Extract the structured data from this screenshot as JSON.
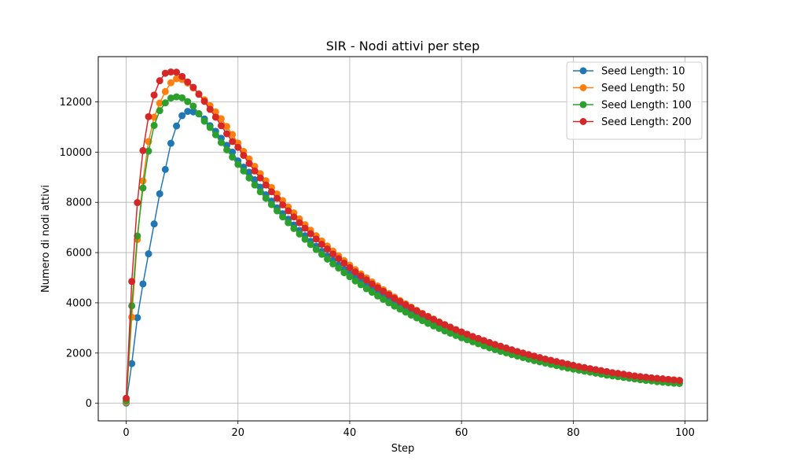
{
  "chart_data": {
    "type": "line",
    "title": "SIR - Nodi attivi per step",
    "xlabel": "Step",
    "ylabel": "Numero di nodi attivi",
    "xlim": [
      -5,
      104
    ],
    "ylim": [
      -700,
      13800
    ],
    "xticks": [
      0,
      20,
      40,
      60,
      80,
      100
    ],
    "yticks": [
      0,
      2000,
      4000,
      6000,
      8000,
      10000,
      12000
    ],
    "grid": true,
    "legend_position": "top-right",
    "x": [
      0,
      1,
      2,
      3,
      4,
      5,
      6,
      7,
      8,
      9,
      10,
      11,
      12,
      13,
      14,
      15,
      16,
      17,
      18,
      19,
      20,
      21,
      22,
      23,
      24,
      25,
      26,
      27,
      28,
      29,
      30,
      31,
      32,
      33,
      34,
      35,
      36,
      37,
      38,
      39,
      40,
      41,
      42,
      43,
      44,
      45,
      46,
      47,
      48,
      49,
      50,
      51,
      52,
      53,
      54,
      55,
      56,
      57,
      58,
      59,
      60,
      61,
      62,
      63,
      64,
      65,
      66,
      67,
      68,
      69,
      70,
      71,
      72,
      73,
      74,
      75,
      76,
      77,
      78,
      79,
      80,
      81,
      82,
      83,
      84,
      85,
      86,
      87,
      88,
      89,
      90,
      91,
      92,
      93,
      94,
      95,
      96,
      97,
      98,
      99
    ],
    "series": [
      {
        "name": "Seed Length: 10",
        "color": "#1f77b4",
        "values": [
          10,
          1580,
          3410,
          4750,
          5950,
          7140,
          8340,
          9310,
          10350,
          11040,
          11450,
          11620,
          11600,
          11520,
          11320,
          11050,
          10830,
          10550,
          10270,
          10000,
          9650,
          9400,
          9200,
          8900,
          8600,
          8300,
          8050,
          7780,
          7550,
          7330,
          7100,
          6880,
          6670,
          6450,
          6250,
          6050,
          5860,
          5690,
          5510,
          5340,
          5170,
          5010,
          4850,
          4700,
          4560,
          4410,
          4270,
          4140,
          4010,
          3880,
          3760,
          3640,
          3530,
          3420,
          3310,
          3210,
          3110,
          3010,
          2920,
          2830,
          2740,
          2660,
          2570,
          2490,
          2420,
          2340,
          2270,
          2200,
          2130,
          2070,
          2000,
          1940,
          1880,
          1820,
          1770,
          1710,
          1660,
          1610,
          1560,
          1510,
          1470,
          1420,
          1380,
          1340,
          1300,
          1260,
          1220,
          1180,
          1150,
          1110,
          1080,
          1050,
          1020,
          990,
          960,
          930,
          900,
          880,
          850,
          830
        ]
      },
      {
        "name": "Seed Length: 50",
        "color": "#ff7f0e",
        "values": [
          50,
          3430,
          6520,
          8850,
          10420,
          11390,
          11950,
          12410,
          12760,
          12920,
          12890,
          12750,
          12550,
          12320,
          12080,
          11850,
          11600,
          11330,
          11020,
          10700,
          10360,
          10030,
          9730,
          9430,
          9140,
          8860,
          8590,
          8330,
          8070,
          7820,
          7580,
          7340,
          7110,
          6890,
          6670,
          6460,
          6260,
          6060,
          5870,
          5680,
          5500,
          5320,
          5150,
          4990,
          4830,
          4670,
          4520,
          4370,
          4230,
          4090,
          3960,
          3830,
          3700,
          3580,
          3460,
          3350,
          3240,
          3130,
          3030,
          2930,
          2840,
          2740,
          2650,
          2570,
          2480,
          2400,
          2320,
          2250,
          2170,
          2100,
          2030,
          1970,
          1910,
          1840,
          1790,
          1730,
          1670,
          1620,
          1570,
          1520,
          1470,
          1420,
          1380,
          1340,
          1300,
          1260,
          1220,
          1190,
          1150,
          1120,
          1100,
          1070,
          1050,
          1030,
          1010,
          990,
          970,
          950,
          930,
          910
        ]
      },
      {
        "name": "Seed Length: 100",
        "color": "#2ca02c",
        "values": [
          100,
          3880,
          6660,
          8570,
          10040,
          11060,
          11650,
          11960,
          12150,
          12200,
          12160,
          12010,
          11830,
          11530,
          11230,
          10980,
          10690,
          10380,
          10090,
          9800,
          9510,
          9250,
          8970,
          8690,
          8420,
          8160,
          7910,
          7660,
          7420,
          7190,
          6960,
          6740,
          6530,
          6320,
          6120,
          5930,
          5740,
          5550,
          5380,
          5200,
          5040,
          4870,
          4720,
          4560,
          4420,
          4270,
          4140,
          4000,
          3870,
          3750,
          3630,
          3510,
          3400,
          3290,
          3180,
          3080,
          2980,
          2880,
          2790,
          2700,
          2610,
          2530,
          2450,
          2370,
          2290,
          2210,
          2140,
          2070,
          2010,
          1940,
          1880,
          1820,
          1760,
          1700,
          1650,
          1600,
          1550,
          1500,
          1450,
          1400,
          1360,
          1320,
          1280,
          1240,
          1200,
          1160,
          1120,
          1090,
          1060,
          1030,
          1000,
          970,
          940,
          910,
          890,
          860,
          840,
          820,
          800,
          790
        ]
      },
      {
        "name": "Seed Length: 200",
        "color": "#d62728",
        "values": [
          200,
          4850,
          7990,
          10060,
          11410,
          12270,
          12840,
          13140,
          13190,
          13180,
          13010,
          12790,
          12580,
          12300,
          12020,
          11700,
          11390,
          11050,
          10730,
          10420,
          10190,
          9870,
          9550,
          9250,
          8970,
          8690,
          8420,
          8160,
          7900,
          7660,
          7420,
          7190,
          6970,
          6750,
          6540,
          6330,
          6140,
          5940,
          5760,
          5580,
          5400,
          5230,
          5070,
          4910,
          4750,
          4600,
          4460,
          4320,
          4180,
          4050,
          3920,
          3800,
          3680,
          3560,
          3450,
          3340,
          3230,
          3130,
          3030,
          2930,
          2840,
          2750,
          2660,
          2580,
          2500,
          2420,
          2340,
          2270,
          2200,
          2130,
          2060,
          2000,
          1940,
          1880,
          1820,
          1760,
          1710,
          1660,
          1610,
          1560,
          1510,
          1460,
          1420,
          1380,
          1340,
          1300,
          1260,
          1220,
          1190,
          1160,
          1120,
          1090,
          1060,
          1040,
          1010,
          990,
          970,
          950,
          930,
          910
        ]
      }
    ]
  }
}
